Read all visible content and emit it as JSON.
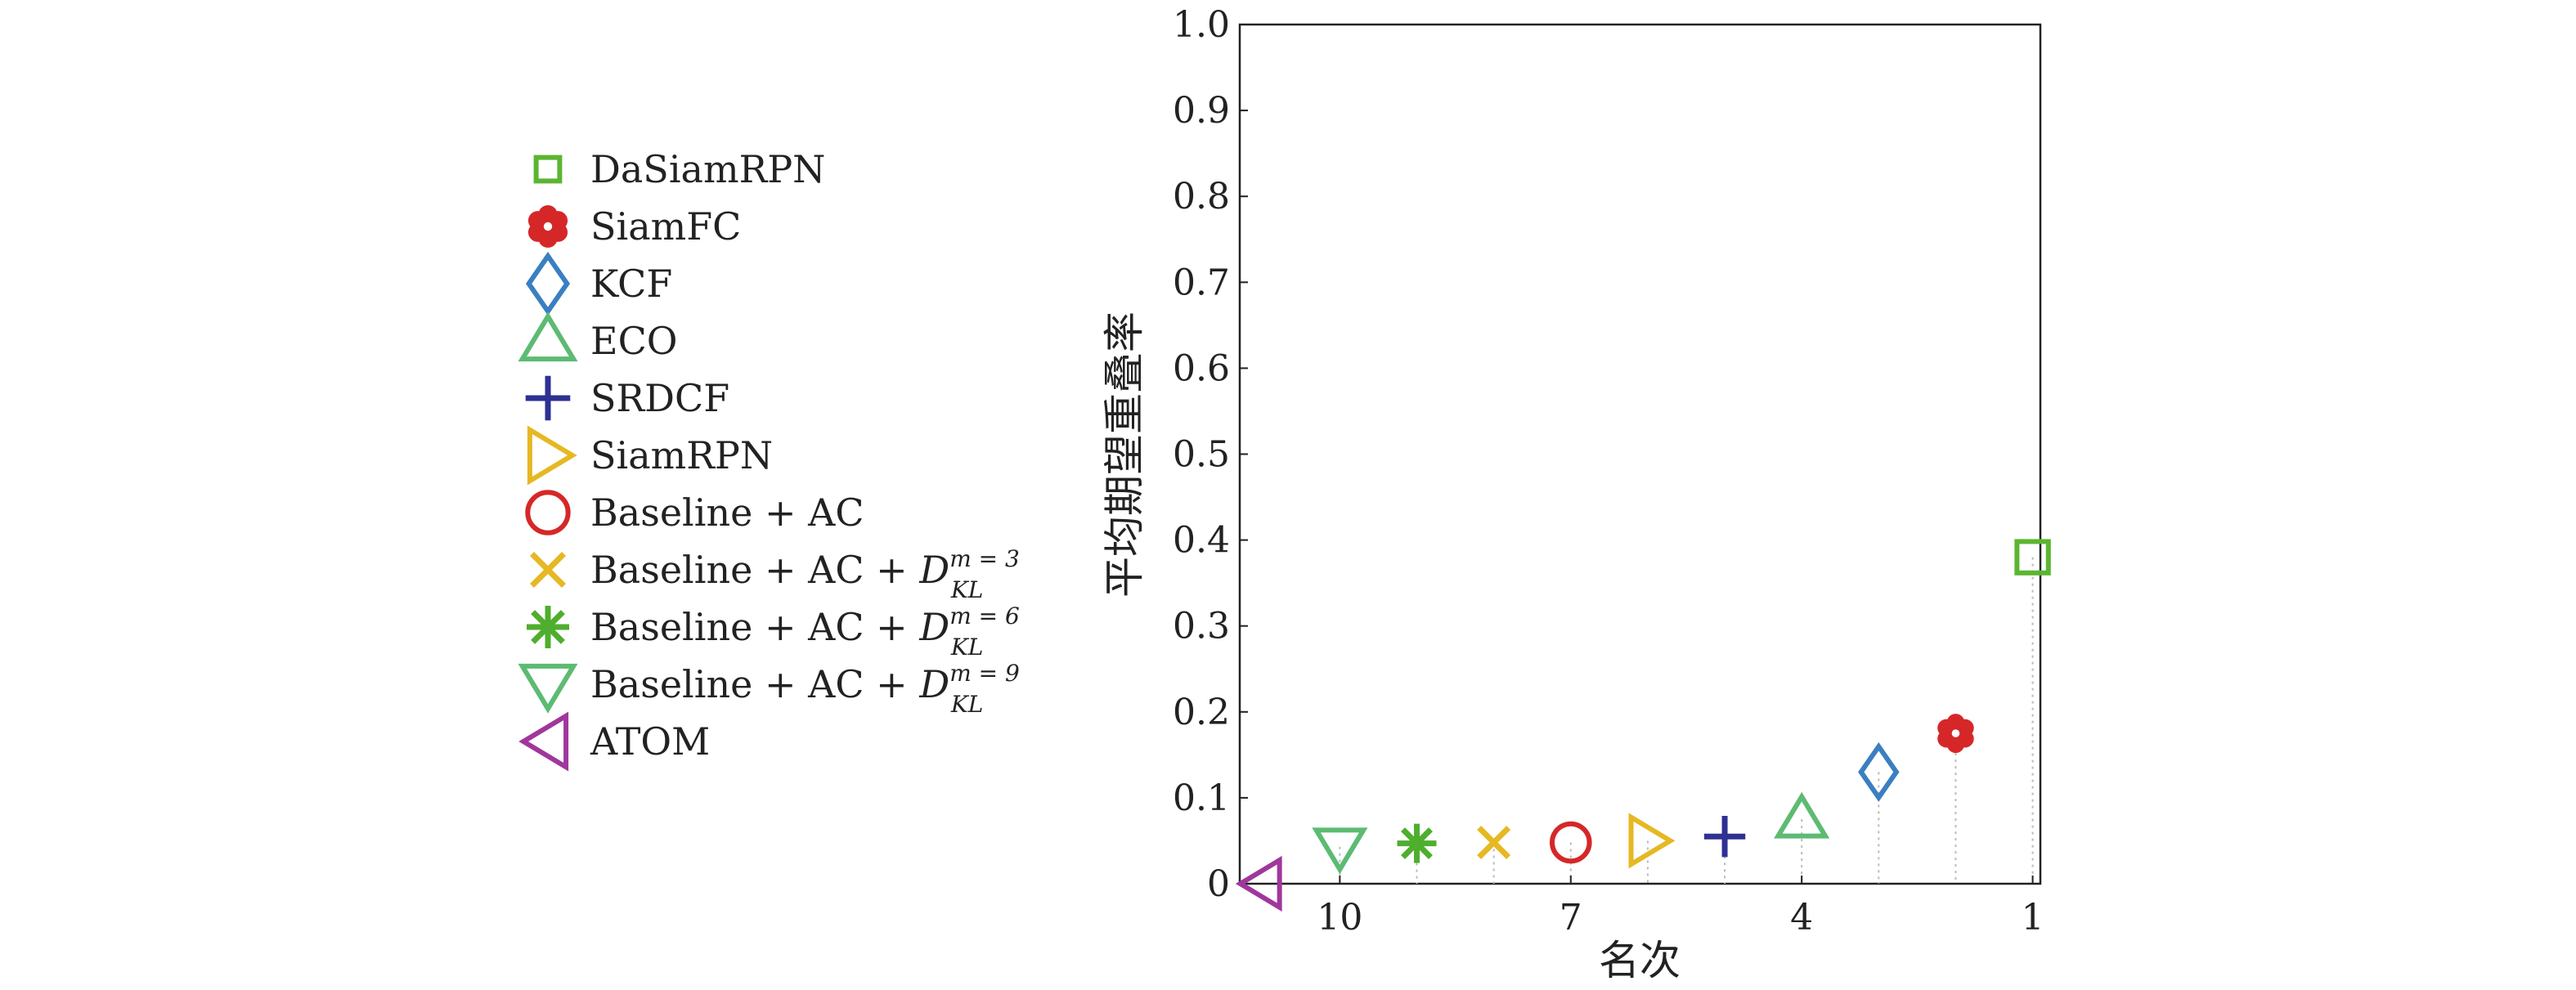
{
  "chart_data": {
    "type": "scatter",
    "xlabel": "名次",
    "ylabel": "平均期望重叠率",
    "ylim": [
      0,
      1.0
    ],
    "xlim": [
      11.3,
      0.9
    ],
    "x_reversed": true,
    "x_ticks": [
      {
        "value": 10,
        "label": "10"
      },
      {
        "value": 7,
        "label": "7"
      },
      {
        "value": 4,
        "label": "4"
      },
      {
        "value": 1,
        "label": "1"
      }
    ],
    "y_ticks": [
      {
        "value": 0,
        "label": "0"
      },
      {
        "value": 0.1,
        "label": "0.1"
      },
      {
        "value": 0.2,
        "label": "0.2"
      },
      {
        "value": 0.3,
        "label": "0.3"
      },
      {
        "value": 0.4,
        "label": "0.4"
      },
      {
        "value": 0.5,
        "label": "0.5"
      },
      {
        "value": 0.6,
        "label": "0.6"
      },
      {
        "value": 0.7,
        "label": "0.7"
      },
      {
        "value": 0.8,
        "label": "0.8"
      },
      {
        "value": 0.9,
        "label": "0.9"
      },
      {
        "value": 1.0,
        "label": "1.0"
      }
    ],
    "legend_position": "left",
    "series": [
      {
        "name": "DaSiamRPN",
        "rank": 1,
        "value": 0.38,
        "marker": "square",
        "color": "#5cb531"
      },
      {
        "name": "SiamFC",
        "rank": 2,
        "value": 0.175,
        "marker": "flower",
        "color": "#d62728"
      },
      {
        "name": "KCF",
        "rank": 3,
        "value": 0.13,
        "marker": "diamond",
        "color": "#3a7fc1"
      },
      {
        "name": "ECO",
        "rank": 4,
        "value": 0.075,
        "marker": "triangle-up",
        "color": "#5dbb72"
      },
      {
        "name": "SRDCF",
        "rank": 5,
        "value": 0.055,
        "marker": "plus",
        "color": "#2e3192"
      },
      {
        "name": "SiamRPN",
        "rank": 6,
        "value": 0.05,
        "marker": "triangle-right",
        "color": "#e6b822"
      },
      {
        "name": "Baseline + AC",
        "rank": 7,
        "value": 0.048,
        "marker": "circle",
        "color": "#d62728"
      },
      {
        "name": "Baseline + AC + D_KL^{m=3}",
        "legend_main": "Baseline + AC + ",
        "legend_D": "D",
        "legend_sup": "m = 3",
        "legend_sub": "KL",
        "rank": 8,
        "value": 0.048,
        "marker": "x",
        "color": "#e6b822"
      },
      {
        "name": "Baseline + AC + D_KL^{m=6}",
        "legend_main": "Baseline + AC + ",
        "legend_D": "D",
        "legend_sup": "m = 6",
        "legend_sub": "KL",
        "rank": 9,
        "value": 0.047,
        "marker": "asterisk",
        "color": "#4fae2d"
      },
      {
        "name": "Baseline + AC + D_KL^{m=9}",
        "legend_main": "Baseline + AC + ",
        "legend_D": "D",
        "legend_sup": "m = 9",
        "legend_sub": "KL",
        "rank": 10,
        "value": 0.043,
        "marker": "triangle-down",
        "color": "#5dbb72"
      },
      {
        "name": "ATOM",
        "rank": 11,
        "value": 0.0,
        "marker": "triangle-left",
        "color": "#a0379c"
      }
    ]
  }
}
